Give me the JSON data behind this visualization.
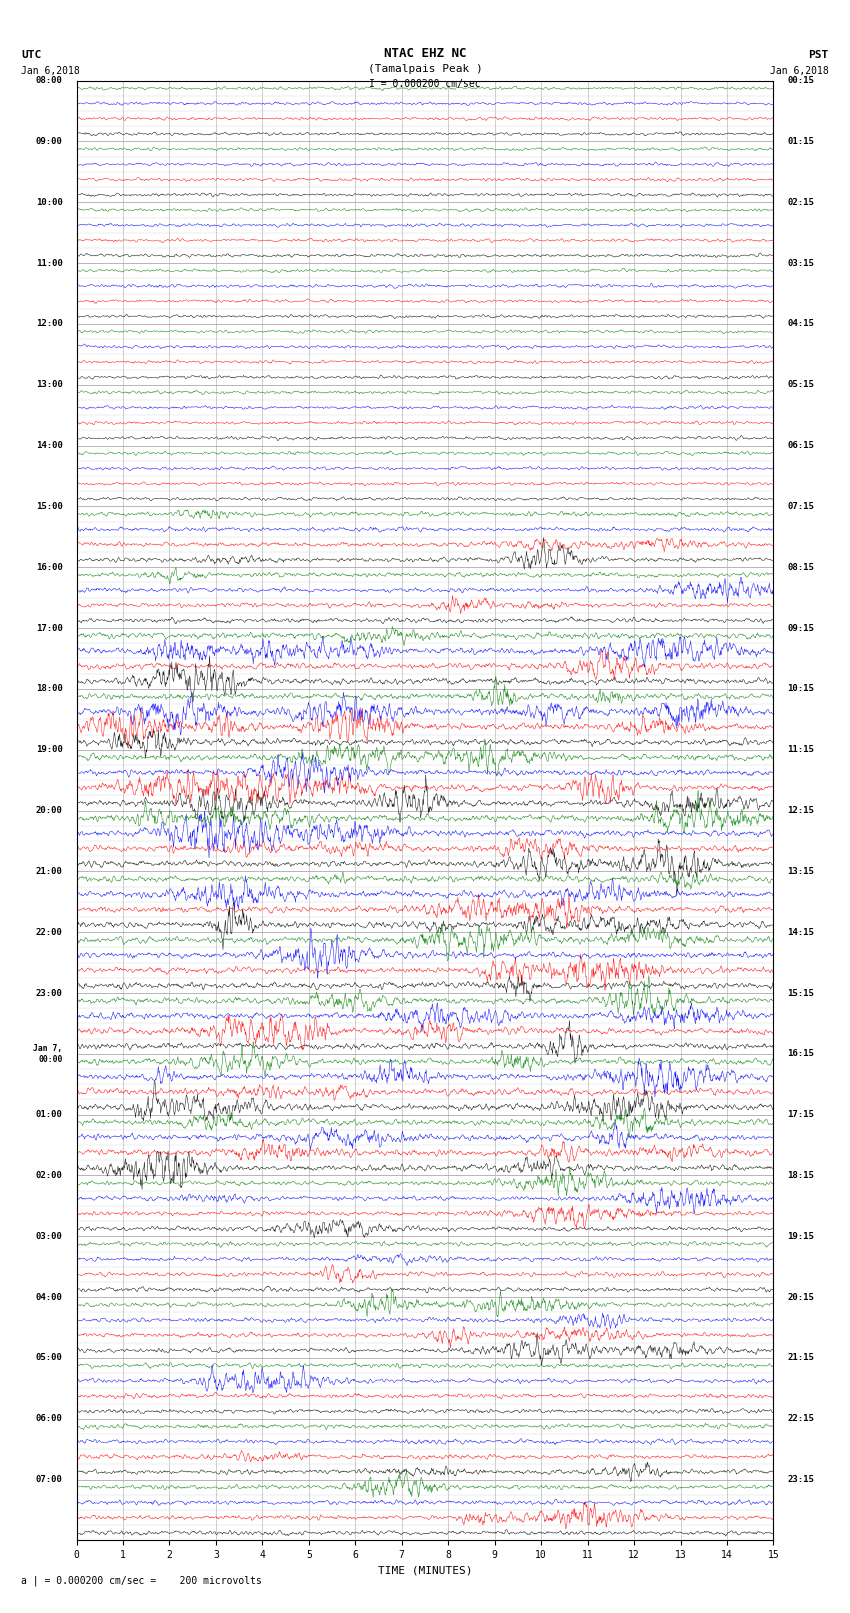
{
  "title_line1": "NTAC EHZ NC",
  "title_line2": "(Tamalpais Peak )",
  "scale_label": "I = 0.000200 cm/sec",
  "utc_header": "UTC",
  "utc_date": "Jan 6,2018",
  "pst_header": "PST",
  "pst_date": "Jan 6,2018",
  "x_label": "TIME (MINUTES)",
  "bottom_note": "a | = 0.000200 cm/sec =    200 microvolts",
  "xlim": [
    0,
    15
  ],
  "xticks": [
    0,
    1,
    2,
    3,
    4,
    5,
    6,
    7,
    8,
    9,
    10,
    11,
    12,
    13,
    14,
    15
  ],
  "num_hour_groups": 24,
  "traces_per_group": 4,
  "trace_colors": [
    "black",
    "red",
    "blue",
    "green"
  ],
  "utc_hour_labels": [
    "08:00",
    "09:00",
    "10:00",
    "11:00",
    "12:00",
    "13:00",
    "14:00",
    "15:00",
    "16:00",
    "17:00",
    "18:00",
    "19:00",
    "20:00",
    "21:00",
    "22:00",
    "23:00",
    "Jan 7,\n00:00",
    "01:00",
    "02:00",
    "03:00",
    "04:00",
    "05:00",
    "06:00",
    "07:00"
  ],
  "pst_hour_labels": [
    "00:15",
    "01:15",
    "02:15",
    "03:15",
    "04:15",
    "05:15",
    "06:15",
    "07:15",
    "08:15",
    "09:15",
    "10:15",
    "11:15",
    "12:15",
    "13:15",
    "14:15",
    "15:15",
    "16:15",
    "17:15",
    "18:15",
    "19:15",
    "20:15",
    "21:15",
    "22:15",
    "23:15"
  ],
  "bg_color": "#ffffff",
  "noise_seed": 12345,
  "fig_width": 8.5,
  "fig_height": 16.13,
  "base_amplitude": 0.1,
  "active_rows": [
    7,
    8,
    9,
    10,
    11,
    12,
    13,
    14,
    15,
    16,
    17,
    18,
    19,
    20,
    21,
    22,
    23
  ],
  "high_activity_rows": [
    9,
    10,
    11,
    12,
    13,
    14,
    15,
    16,
    17
  ]
}
